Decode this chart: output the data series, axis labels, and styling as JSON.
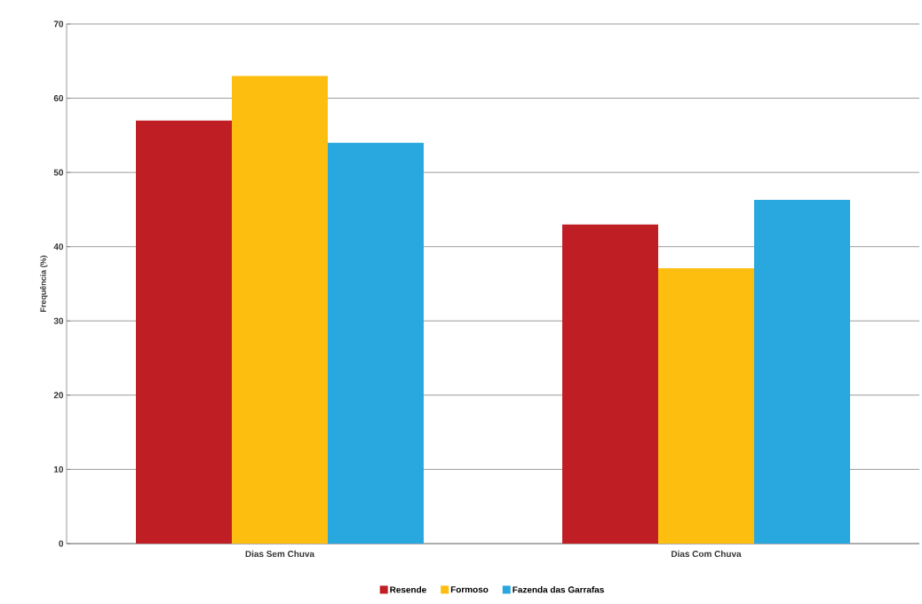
{
  "chart_data": {
    "type": "bar",
    "ylabel": "Frequência (%)",
    "categories": [
      "Dias Sem Chuva",
      "Dias Com Chuva"
    ],
    "series": [
      {
        "name": "Resende",
        "color": "#be1e24",
        "values": [
          57,
          43
        ]
      },
      {
        "name": "Formoso",
        "color": "#fdbe10",
        "values": [
          63,
          37.1
        ]
      },
      {
        "name": "Fazenda das Garrafas",
        "color": "#29a8e0",
        "values": [
          54,
          46.3
        ]
      }
    ],
    "ylim": [
      0,
      70
    ],
    "yticks": [
      0,
      10,
      20,
      30,
      40,
      50,
      60,
      70
    ],
    "grid": "y",
    "legend": "bottom"
  }
}
